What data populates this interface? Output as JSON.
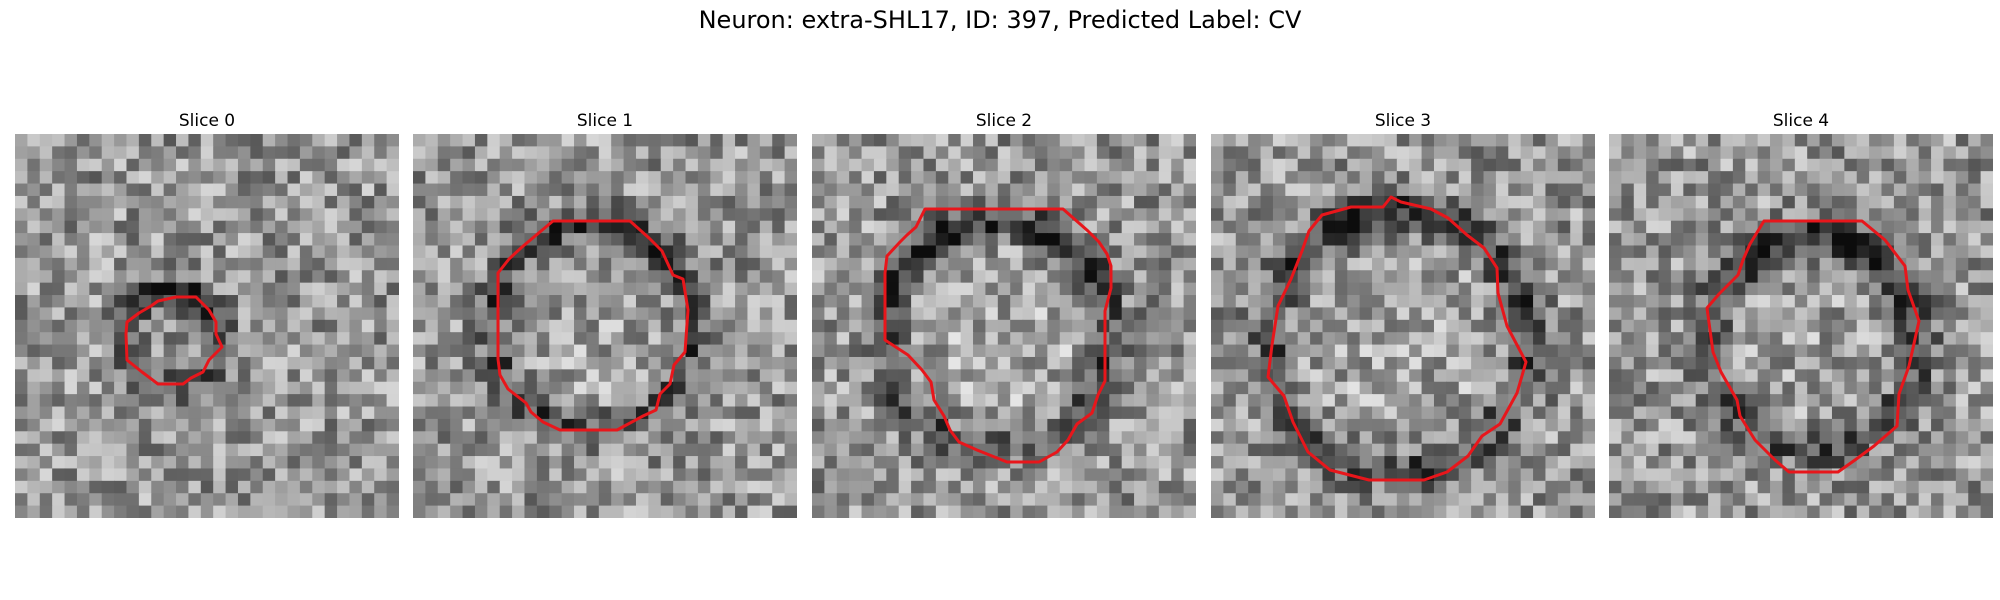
{
  "figure": {
    "title": "Neuron: extra-SHL17, ID: 397, Predicted Label: CV"
  },
  "panels": [
    {
      "title": "Slice 0"
    },
    {
      "title": "Slice 1"
    },
    {
      "title": "Slice 2"
    },
    {
      "title": "Slice 3"
    },
    {
      "title": "Slice 4"
    }
  ],
  "colors": {
    "contour": "#e8161b",
    "background": "#ffffff"
  },
  "image": {
    "grid": 31,
    "colormap": "gray"
  }
}
